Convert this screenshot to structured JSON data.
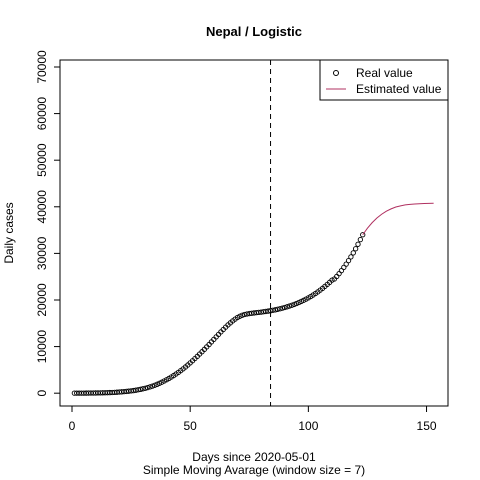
{
  "chart_data": {
    "type": "scatter",
    "title": "Nepal / Logistic",
    "x_label": "Days since 2020-05-01",
    "subtitle": "Simple Moving Avarage (window size = 7)",
    "y_label": "Daily cases",
    "xlim": [
      -5.08,
      159.08
    ],
    "ylim": [
      -2750,
      71500
    ],
    "xticks": [
      0,
      50,
      100,
      150
    ],
    "yticks": [
      0,
      10000,
      20000,
      30000,
      40000,
      50000,
      60000,
      70000
    ],
    "vline": 84,
    "legend": "topright",
    "series": [
      {
        "name": "Real value",
        "kind": "points",
        "color": "#000000",
        "x": [
          1,
          2,
          3,
          4,
          5,
          6,
          7,
          8,
          9,
          10,
          11,
          12,
          13,
          14,
          15,
          16,
          17,
          18,
          19,
          20,
          21,
          22,
          23,
          24,
          25,
          26,
          27,
          28,
          29,
          30,
          31,
          32,
          33,
          34,
          35,
          36,
          37,
          38,
          39,
          40,
          41,
          42,
          43,
          44,
          45,
          46,
          47,
          48,
          49,
          50,
          51,
          52,
          53,
          54,
          55,
          56,
          57,
          58,
          59,
          60,
          61,
          62,
          63,
          64,
          65,
          66,
          67,
          68,
          69,
          70,
          71,
          72,
          73,
          74,
          75,
          76,
          77,
          78,
          79,
          80,
          81,
          82,
          83,
          84,
          85,
          86,
          87,
          88,
          89,
          90,
          91,
          92,
          93,
          94,
          95,
          96,
          97,
          98,
          99,
          100,
          101,
          102,
          103,
          104,
          105,
          106,
          107,
          108,
          109,
          110,
          111,
          112,
          113,
          114,
          115,
          116,
          117,
          118,
          119,
          120,
          121,
          122,
          123
        ],
        "values": [
          10,
          12,
          15,
          18,
          20,
          25,
          30,
          35,
          40,
          50,
          60,
          70,
          80,
          95,
          110,
          130,
          150,
          180,
          210,
          250,
          290,
          330,
          380,
          430,
          490,
          560,
          640,
          730,
          830,
          940,
          1060,
          1200,
          1350,
          1520,
          1700,
          1900,
          2120,
          2360,
          2610,
          2880,
          3160,
          3460,
          3780,
          4110,
          4460,
          4830,
          5220,
          5630,
          6060,
          6500,
          6960,
          7430,
          7910,
          8400,
          8900,
          9410,
          9930,
          10460,
          11000,
          11540,
          12080,
          12620,
          13150,
          13670,
          14170,
          14650,
          15100,
          15520,
          15900,
          16230,
          16500,
          16720,
          16880,
          17000,
          17090,
          17160,
          17220,
          17280,
          17340,
          17400,
          17470,
          17540,
          17620,
          17700,
          17790,
          17890,
          18000,
          18120,
          18250,
          18390,
          18540,
          18700,
          18870,
          19050,
          19250,
          19460,
          19690,
          19930,
          20190,
          20460,
          20750,
          21060,
          21390,
          21740,
          22110,
          22500,
          22910,
          23340,
          23790,
          24270,
          24500,
          25050,
          25650,
          26300,
          27000,
          27700,
          28450,
          29250,
          30100,
          31000,
          31950,
          32950,
          34000
        ]
      },
      {
        "name": "Estimated value",
        "kind": "line",
        "color": "#b03060",
        "x": [
          123,
          125,
          127,
          129,
          131,
          133,
          135,
          137,
          139,
          141,
          143,
          145,
          147,
          149,
          151,
          153
        ],
        "values": [
          34000,
          35400,
          36600,
          37600,
          38400,
          39050,
          39550,
          39950,
          40200,
          40400,
          40520,
          40600,
          40660,
          40700,
          40730,
          40750
        ]
      }
    ]
  }
}
